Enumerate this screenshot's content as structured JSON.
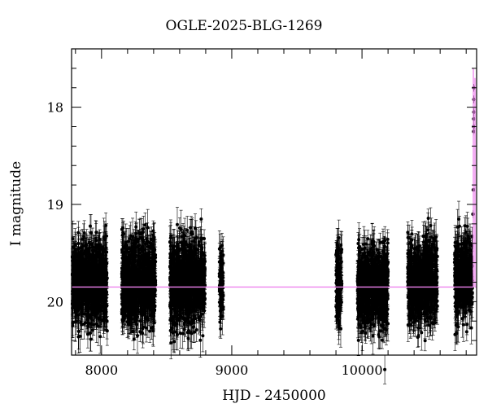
{
  "chart_data": {
    "type": "scatter",
    "title": "OGLE-2025-BLG-1269",
    "xlabel": "HJD - 2450000",
    "ylabel": "I magnitude",
    "xlim": [
      7770,
      10880
    ],
    "ylim": [
      20.55,
      17.4
    ],
    "y_inverted": true,
    "x_ticks": [
      8000,
      9000,
      10000
    ],
    "y_ticks": [
      18,
      19,
      20
    ],
    "grid": false,
    "legend": "none",
    "baseline_magnitude": 19.85,
    "peak_time": 10855,
    "colors": {
      "points": "#000000",
      "model": "#ee82ee"
    },
    "seasons": [
      {
        "start": 7775,
        "end": 8045,
        "center": 19.8,
        "spread": 0.35,
        "peak": 19.05
      },
      {
        "start": 8155,
        "end": 8415,
        "center": 19.8,
        "spread": 0.35,
        "peak": 19.2
      },
      {
        "start": 8525,
        "end": 8795,
        "center": 19.8,
        "spread": 0.35,
        "peak": 19.15
      },
      {
        "start": 8905,
        "end": 8935,
        "center": 19.85,
        "spread": 0.3,
        "peak": 19.4
      },
      {
        "start": 9800,
        "end": 9845,
        "center": 19.8,
        "spread": 0.35,
        "peak": 19.15
      },
      {
        "start": 9965,
        "end": 10200,
        "center": 19.85,
        "spread": 0.33,
        "peak": 19.35
      },
      {
        "start": 10350,
        "end": 10580,
        "center": 19.8,
        "spread": 0.33,
        "peak": 19.05
      },
      {
        "start": 10710,
        "end": 10848,
        "center": 19.75,
        "spread": 0.33,
        "peak": 19.15
      }
    ],
    "peak_points": [
      {
        "x": 10852,
        "y": 19.1
      },
      {
        "x": 10855,
        "y": 18.85
      },
      {
        "x": 10857,
        "y": 18.25
      },
      {
        "x": 10858,
        "y": 18.2
      },
      {
        "x": 10858,
        "y": 18.12
      },
      {
        "x": 10859,
        "y": 18.05
      },
      {
        "x": 10859,
        "y": 17.92
      },
      {
        "x": 10859,
        "y": 17.8
      }
    ]
  }
}
